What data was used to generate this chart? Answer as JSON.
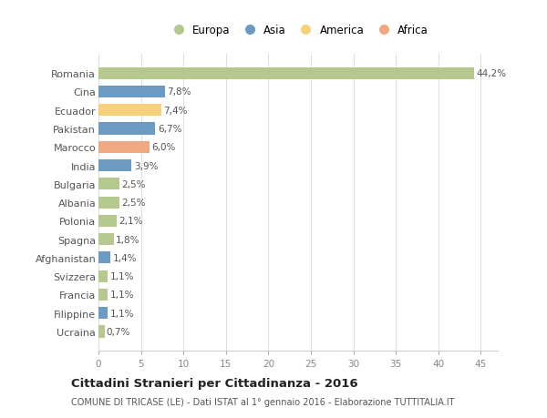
{
  "countries": [
    "Romania",
    "Cina",
    "Ecuador",
    "Pakistan",
    "Marocco",
    "India",
    "Bulgaria",
    "Albania",
    "Polonia",
    "Spagna",
    "Afghanistan",
    "Svizzera",
    "Francia",
    "Filippine",
    "Ucraina"
  ],
  "values": [
    44.2,
    7.8,
    7.4,
    6.7,
    6.0,
    3.9,
    2.5,
    2.5,
    2.1,
    1.8,
    1.4,
    1.1,
    1.1,
    1.1,
    0.7
  ],
  "labels": [
    "44,2%",
    "7,8%",
    "7,4%",
    "6,7%",
    "6,0%",
    "3,9%",
    "2,5%",
    "2,5%",
    "2,1%",
    "1,8%",
    "1,4%",
    "1,1%",
    "1,1%",
    "1,1%",
    "0,7%"
  ],
  "colors": [
    "#b5c98e",
    "#6b9bc3",
    "#f5d27a",
    "#6b9bc3",
    "#f0a882",
    "#6b9bc3",
    "#b5c98e",
    "#b5c98e",
    "#b5c98e",
    "#b5c98e",
    "#6b9bc3",
    "#b5c98e",
    "#b5c98e",
    "#6b9bc3",
    "#b5c98e"
  ],
  "legend_labels": [
    "Europa",
    "Asia",
    "America",
    "Africa"
  ],
  "legend_colors": [
    "#b5c98e",
    "#6b9bc3",
    "#f5d27a",
    "#f0a882"
  ],
  "title": "Cittadini Stranieri per Cittadinanza - 2016",
  "subtitle": "COMUNE DI TRICASE (LE) - Dati ISTAT al 1° gennaio 2016 - Elaborazione TUTTITALIA.IT",
  "xlim": [
    0,
    47
  ],
  "xticks": [
    0,
    5,
    10,
    15,
    20,
    25,
    30,
    35,
    40,
    45
  ],
  "bg_color": "#ffffff",
  "grid_color": "#e0e0e0",
  "bar_height": 0.65
}
